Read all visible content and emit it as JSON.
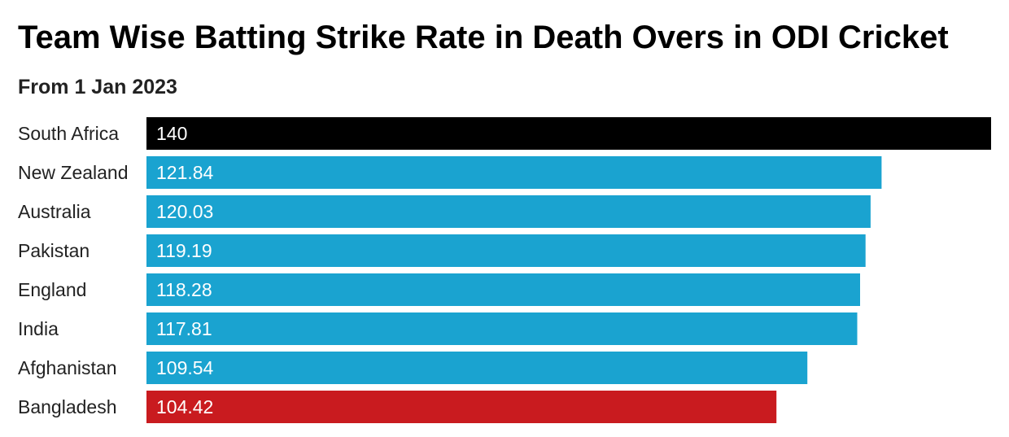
{
  "chart_data": {
    "type": "bar",
    "orientation": "horizontal",
    "title": "Team Wise Batting Strike Rate in Death Overs in ODI Cricket",
    "subtitle": "From 1 Jan 2023",
    "categories": [
      "South Africa",
      "New Zealand",
      "Australia",
      "Pakistan",
      "England",
      "India",
      "Afghanistan",
      "Bangladesh"
    ],
    "values": [
      140,
      121.84,
      120.03,
      119.19,
      118.28,
      117.81,
      109.54,
      104.42
    ],
    "value_labels": [
      "140",
      "121.84",
      "120.03",
      "119.19",
      "118.28",
      "117.81",
      "109.54",
      "104.42"
    ],
    "bar_colors": [
      "#000000",
      "#1aa3d0",
      "#1aa3d0",
      "#1aa3d0",
      "#1aa3d0",
      "#1aa3d0",
      "#1aa3d0",
      "#c91b1f"
    ],
    "xlim": [
      0,
      140
    ],
    "grid": false,
    "legend": "none"
  }
}
